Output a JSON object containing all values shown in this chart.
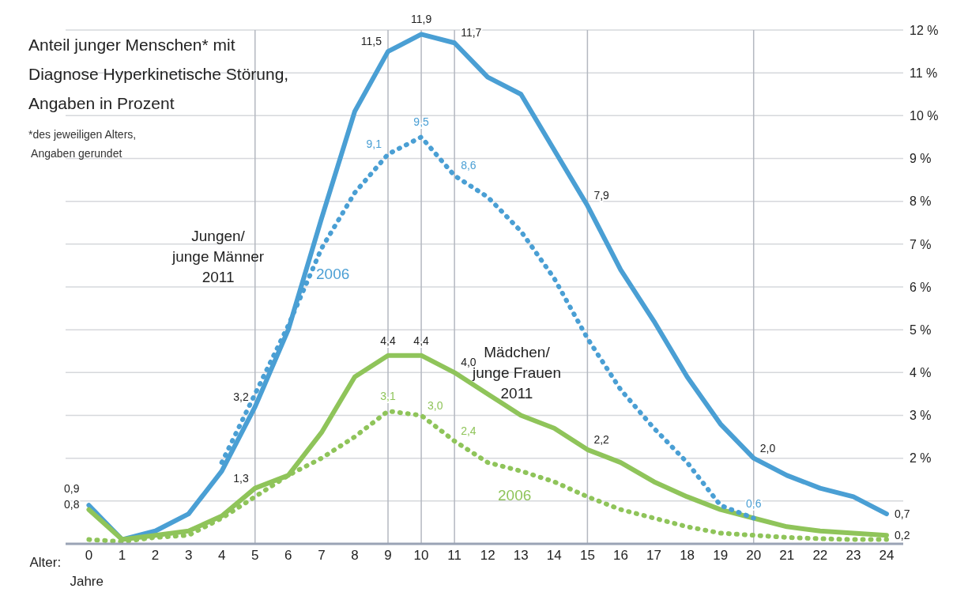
{
  "chart_data": {
    "type": "line",
    "title": "Anteil junger Menschen* mit\nDiagnose Hyperkinetische Störung,\nAngaben in Prozent",
    "annotations": [
      "*des jeweiligen Alters,\n Angaben gerundet",
      "Jahre"
    ],
    "xlabel": "Alter:",
    "x": [
      0,
      1,
      2,
      3,
      4,
      5,
      6,
      7,
      8,
      9,
      10,
      11,
      12,
      13,
      14,
      15,
      16,
      17,
      18,
      19,
      20,
      21,
      22,
      23,
      24
    ],
    "xlim": [
      -0.7,
      24.5
    ],
    "xticks": [
      0,
      1,
      2,
      3,
      4,
      5,
      6,
      7,
      8,
      9,
      10,
      11,
      12,
      13,
      14,
      15,
      16,
      17,
      18,
      19,
      20,
      21,
      22,
      23,
      24
    ],
    "ylim": [
      0,
      12
    ],
    "yticks": [
      {
        "value": 1,
        "label": null
      },
      {
        "value": 2,
        "label": "2 %"
      },
      {
        "value": 3,
        "label": "3 %"
      },
      {
        "value": 4,
        "label": "4 %"
      },
      {
        "value": 5,
        "label": "5 %"
      },
      {
        "value": 6,
        "label": "6 %"
      },
      {
        "value": 7,
        "label": "7 %"
      },
      {
        "value": 8,
        "label": "8 %"
      },
      {
        "value": 9,
        "label": "9 %"
      },
      {
        "value": 10,
        "label": "10 %"
      },
      {
        "value": 11,
        "label": "11 %"
      },
      {
        "value": 12,
        "label": "12 %"
      }
    ],
    "grid": "y",
    "ref_lines": [
      {
        "axis": "x",
        "value": 5,
        "color": "#b4b8c0"
      },
      {
        "axis": "x",
        "value": 9,
        "color": "#b4b8c0"
      },
      {
        "axis": "x",
        "value": 10,
        "color": "#b4b8c0"
      },
      {
        "axis": "x",
        "value": 11,
        "color": "#b4b8c0"
      },
      {
        "axis": "x",
        "value": 15,
        "color": "#b4b8c0"
      },
      {
        "axis": "x",
        "value": 20,
        "color": "#b4b8c0"
      }
    ],
    "series": [
      {
        "name": "Jungen/\njunge Männer\n2011",
        "color": "#4a9fd4",
        "line_style": "solid",
        "values": [
          0.9,
          0.1,
          0.3,
          0.7,
          1.7,
          3.2,
          5.0,
          7.6,
          10.1,
          11.5,
          11.9,
          11.7,
          10.9,
          10.5,
          9.2,
          7.9,
          6.4,
          5.2,
          3.9,
          2.8,
          2.0,
          1.6,
          1.3,
          1.1,
          0.7
        ],
        "value_labels": [
          "0,9",
          null,
          null,
          null,
          null,
          "3,2",
          null,
          null,
          null,
          "11,5",
          "11,9",
          "11,7",
          null,
          null,
          null,
          "7,9",
          null,
          null,
          null,
          null,
          "2,0",
          null,
          null,
          null,
          "0,7"
        ]
      },
      {
        "name": "2006",
        "color": "#4a9fd4",
        "line_style": "dotted",
        "values": [
          null,
          null,
          null,
          null,
          1.9,
          3.5,
          5.1,
          6.9,
          8.2,
          9.1,
          9.5,
          8.6,
          8.1,
          7.3,
          6.2,
          4.8,
          3.6,
          2.7,
          1.9,
          0.9,
          0.6,
          null,
          null,
          null,
          null
        ],
        "value_labels": [
          null,
          null,
          null,
          null,
          null,
          null,
          null,
          null,
          null,
          "9,1",
          "9,5",
          "8,6",
          null,
          null,
          null,
          null,
          null,
          null,
          null,
          null,
          "0,6",
          null,
          null,
          null,
          null
        ]
      },
      {
        "name": "Mädchen/\njunge Frauen\n2011",
        "color": "#8fc45a",
        "line_style": "solid",
        "values": [
          0.8,
          0.1,
          0.2,
          0.3,
          0.65,
          1.3,
          1.6,
          2.6,
          3.9,
          4.4,
          4.4,
          4.0,
          3.5,
          3.0,
          2.7,
          2.2,
          1.9,
          1.45,
          1.1,
          0.8,
          0.6,
          0.4,
          0.3,
          0.25,
          0.2
        ],
        "value_labels": [
          "0,8",
          null,
          null,
          null,
          null,
          "1,3",
          null,
          null,
          null,
          "4,4",
          "4,4",
          "4,0",
          null,
          null,
          null,
          "2,2",
          null,
          null,
          null,
          null,
          null,
          null,
          null,
          null,
          "0,2"
        ]
      },
      {
        "name": "2006",
        "color": "#8fc45a",
        "line_style": "dotted",
        "values": [
          0.1,
          0.05,
          0.15,
          0.2,
          0.6,
          1.1,
          1.6,
          2.0,
          2.5,
          3.1,
          3.0,
          2.4,
          1.9,
          1.7,
          1.45,
          1.1,
          0.8,
          0.6,
          0.4,
          0.25,
          0.2,
          0.15,
          0.12,
          0.1,
          0.1
        ],
        "value_labels": [
          null,
          null,
          null,
          null,
          null,
          null,
          null,
          null,
          null,
          "3,1",
          "3,0",
          "2,4",
          null,
          null,
          null,
          null,
          null,
          null,
          null,
          null,
          null,
          null,
          null,
          null,
          null
        ]
      }
    ]
  }
}
